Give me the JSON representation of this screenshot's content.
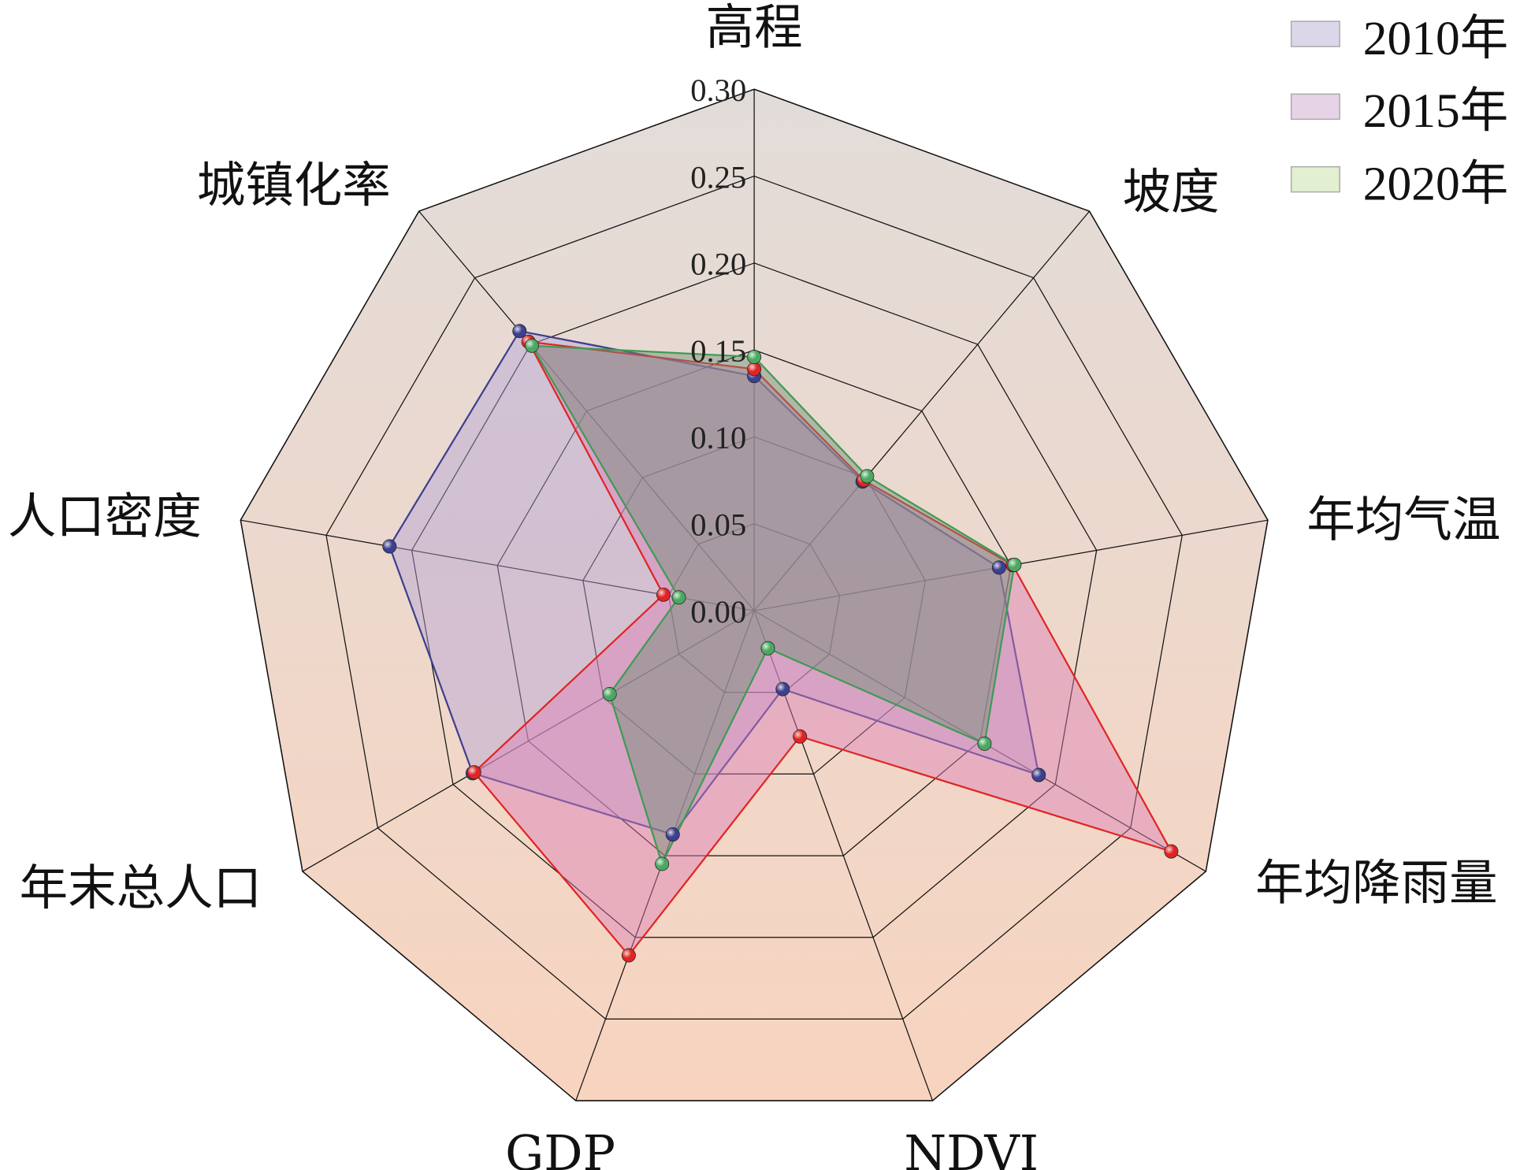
{
  "chart_data": {
    "type": "radar",
    "title": "",
    "axes": [
      "高程",
      "坡度",
      "年均气温",
      "年均降雨量",
      "NDVI",
      "GDP",
      "年末总人口",
      "人口密度",
      "城镇化率"
    ],
    "rlim": [
      0,
      0.3
    ],
    "ticks": [
      "0.00",
      "0.05",
      "0.10",
      "0.15",
      "0.20",
      "0.25",
      "0.30"
    ],
    "tick_values": [
      0,
      0.05,
      0.1,
      0.15,
      0.2,
      0.25,
      0.3
    ],
    "legend_position": "top-right",
    "series": [
      {
        "name": "2010年",
        "line_color": "#3d3f8f",
        "fill_color": "#b3a3d6",
        "marker_color": "#3d3f8f",
        "swatch_color": "#dcd6ea",
        "values": [
          0.135,
          0.097,
          0.143,
          0.189,
          0.048,
          0.137,
          0.187,
          0.213,
          0.21
        ]
      },
      {
        "name": "2015年",
        "line_color": "#e02424",
        "fill_color": "#dc7fb6",
        "marker_color": "#e02424",
        "swatch_color": "#e6d3e6",
        "values": [
          0.139,
          0.098,
          0.151,
          0.277,
          0.077,
          0.211,
          0.186,
          0.053,
          0.202
        ]
      },
      {
        "name": "2020年",
        "line_color": "#3f9a55",
        "fill_color": "#6f8f75",
        "marker_color": "#4aa860",
        "swatch_color": "#e2efd0",
        "values": [
          0.146,
          0.101,
          0.152,
          0.153,
          0.023,
          0.155,
          0.096,
          0.044,
          0.199
        ]
      }
    ]
  }
}
